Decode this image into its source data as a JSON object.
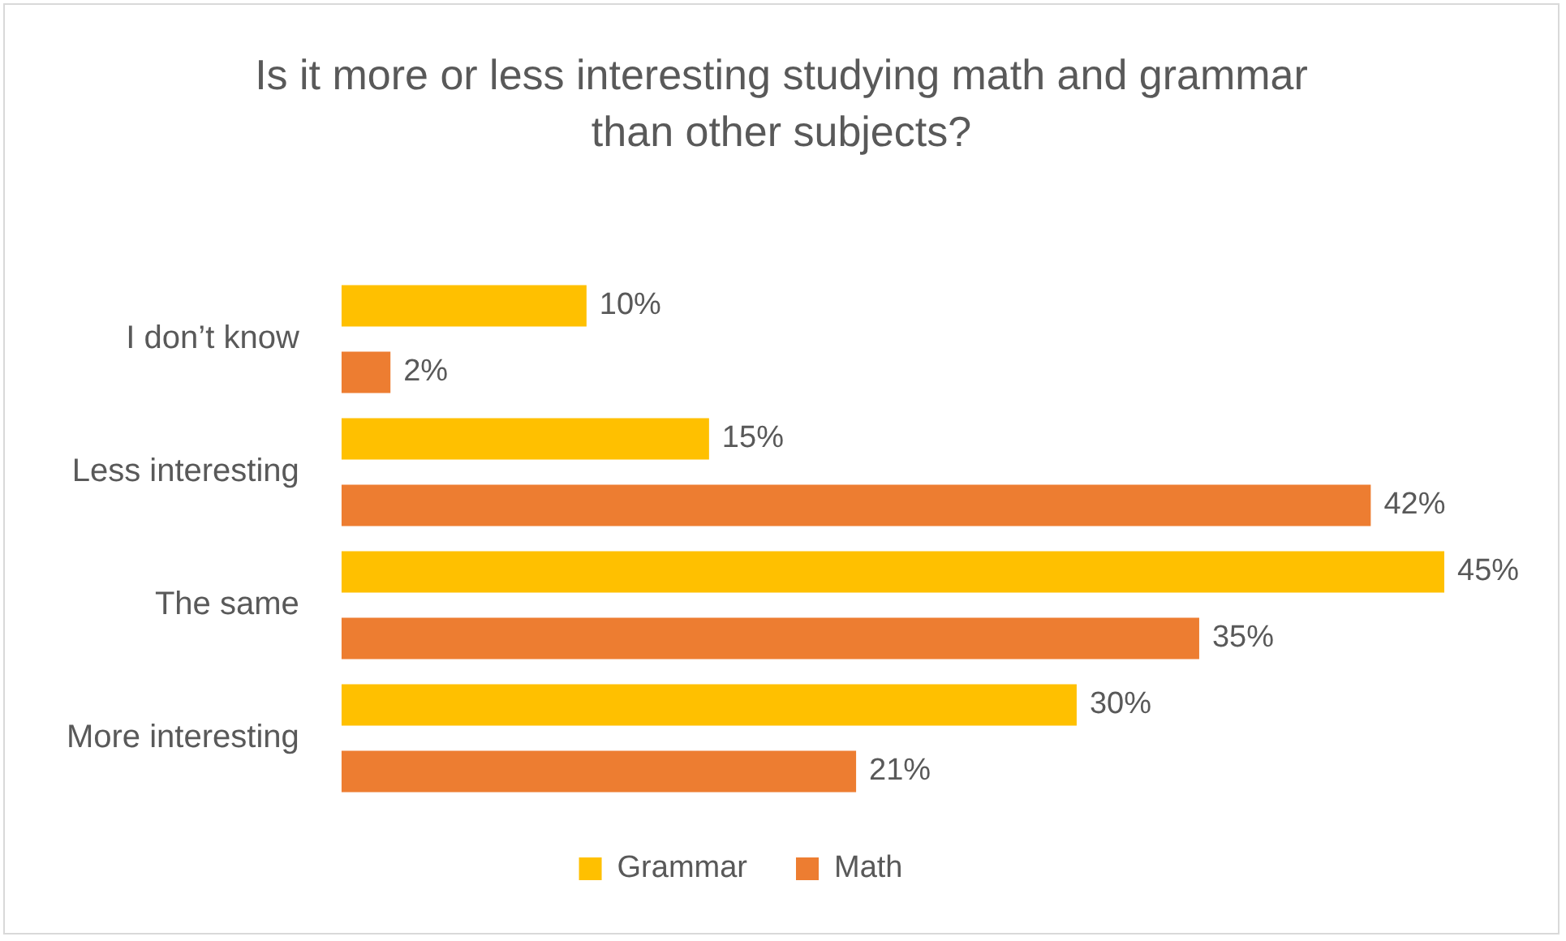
{
  "chart_data": {
    "type": "bar",
    "orientation": "horizontal",
    "title": "Is it more or less interesting studying math and grammar than other subjects?",
    "categories": [
      "I don’t know",
      "Less interesting",
      "The same",
      "More interesting"
    ],
    "series": [
      {
        "name": "Grammar",
        "color": "#ffc000",
        "values": [
          10,
          15,
          45,
          30
        ],
        "value_labels": [
          "10%",
          "15%",
          "45%",
          "30%"
        ]
      },
      {
        "name": "Math",
        "color": "#ed7d31",
        "values": [
          2,
          42,
          35,
          21
        ],
        "value_labels": [
          "2%",
          "42%",
          "35%",
          "21%"
        ]
      }
    ],
    "tick_labels": "y",
    "legend": "bottom"
  }
}
